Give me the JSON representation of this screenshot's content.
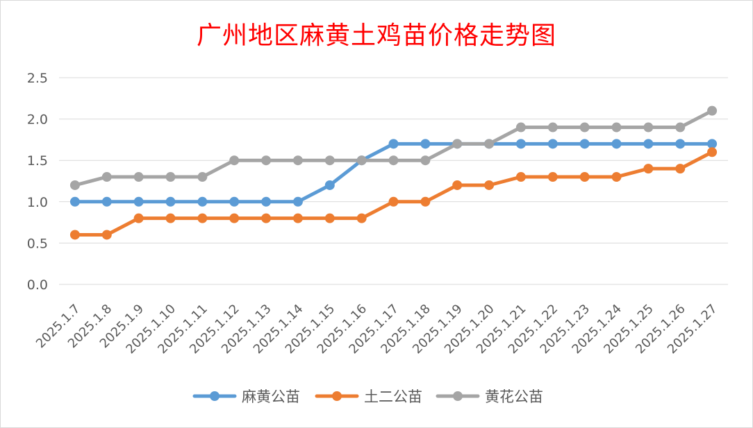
{
  "chart_data": {
    "type": "line",
    "title": "广州地区麻黄土鸡苗价格走势图",
    "xlabel": "",
    "ylabel": "",
    "ylim": [
      0,
      2.5
    ],
    "yticks": [
      "0.0",
      "0.5",
      "1.0",
      "1.5",
      "2.0",
      "2.5"
    ],
    "categories": [
      "2025.1.7",
      "2025.1.8",
      "2025.1.9",
      "2025.1.10",
      "2025.1.11",
      "2025.1.12",
      "2025.1.13",
      "2025.1.14",
      "2025.1.15",
      "2025.1.16",
      "2025.1.17",
      "2025.1.18",
      "2025.1.19",
      "2025.1.20",
      "2025.1.21",
      "2025.1.22",
      "2025.1.23",
      "2025.1.24",
      "2025.1.25",
      "2025.1.26",
      "2025.1.27"
    ],
    "series": [
      {
        "name": "麻黄公苗",
        "color": "#5b9bd5",
        "values": [
          1.0,
          1.0,
          1.0,
          1.0,
          1.0,
          1.0,
          1.0,
          1.0,
          1.2,
          1.5,
          1.7,
          1.7,
          1.7,
          1.7,
          1.7,
          1.7,
          1.7,
          1.7,
          1.7,
          1.7,
          1.7
        ]
      },
      {
        "name": "土二公苗",
        "color": "#ed7d31",
        "values": [
          0.6,
          0.6,
          0.8,
          0.8,
          0.8,
          0.8,
          0.8,
          0.8,
          0.8,
          0.8,
          1.0,
          1.0,
          1.2,
          1.2,
          1.3,
          1.3,
          1.3,
          1.3,
          1.4,
          1.4,
          1.6
        ]
      },
      {
        "name": "黄花公苗",
        "color": "#a5a5a5",
        "values": [
          1.2,
          1.3,
          1.3,
          1.3,
          1.3,
          1.5,
          1.5,
          1.5,
          1.5,
          1.5,
          1.5,
          1.5,
          1.7,
          1.7,
          1.9,
          1.9,
          1.9,
          1.9,
          1.9,
          1.9,
          2.1
        ]
      }
    ],
    "grid": true,
    "legend": "bottom",
    "title_color": "#ff0000"
  }
}
